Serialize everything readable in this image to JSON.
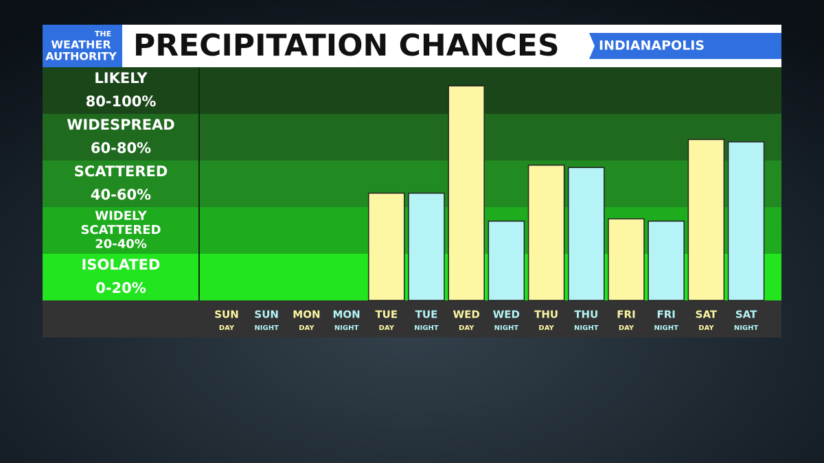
{
  "logo": [
    "THE",
    "WEATHER",
    "AUTHORITY"
  ],
  "chart_data": {
    "type": "bar",
    "title": "PRECIPITATION CHANCES",
    "location": "INDIANAPOLIS",
    "categories": [
      "SUN",
      "SUN",
      "MON",
      "MON",
      "TUE",
      "TUE",
      "WED",
      "WED",
      "THU",
      "THU",
      "FRI",
      "FRI",
      "SAT",
      "SAT"
    ],
    "category_periods": [
      "DAY",
      "NIGHT",
      "DAY",
      "NIGHT",
      "DAY",
      "NIGHT",
      "DAY",
      "NIGHT",
      "DAY",
      "NIGHT",
      "DAY",
      "NIGHT",
      "DAY",
      "NIGHT"
    ],
    "values": [
      0,
      0,
      0,
      0,
      46,
      46,
      92,
      34,
      58,
      57,
      35,
      34,
      69,
      68
    ],
    "colors": [
      "#fdf6a3",
      "#b6f3f6",
      "#fdf6a3",
      "#b6f3f6",
      "#fdf6a3",
      "#b6f3f6",
      "#fdf6a3",
      "#b6f3f6",
      "#fdf6a3",
      "#b6f3f6",
      "#fdf6a3",
      "#b6f3f6",
      "#fdf6a3",
      "#b6f3f6"
    ],
    "ylim": [
      0,
      100
    ],
    "bands": [
      {
        "name": [
          "LIKELY"
        ],
        "range": "80-100%",
        "from": 80,
        "to": 100,
        "color": "#1a461a"
      },
      {
        "name": [
          "WIDESPREAD"
        ],
        "range": "60-80%",
        "from": 60,
        "to": 80,
        "color": "#1f6a1f"
      },
      {
        "name": [
          "SCATTERED"
        ],
        "range": "40-60%",
        "from": 40,
        "to": 60,
        "color": "#218a21"
      },
      {
        "name": [
          "WIDELY",
          "SCATTERED"
        ],
        "range": "20-40%",
        "from": 20,
        "to": 40,
        "color": "#1eab1e"
      },
      {
        "name": [
          "ISOLATED"
        ],
        "range": "0-20%",
        "from": 0,
        "to": 20,
        "color": "#22e41f"
      }
    ]
  }
}
